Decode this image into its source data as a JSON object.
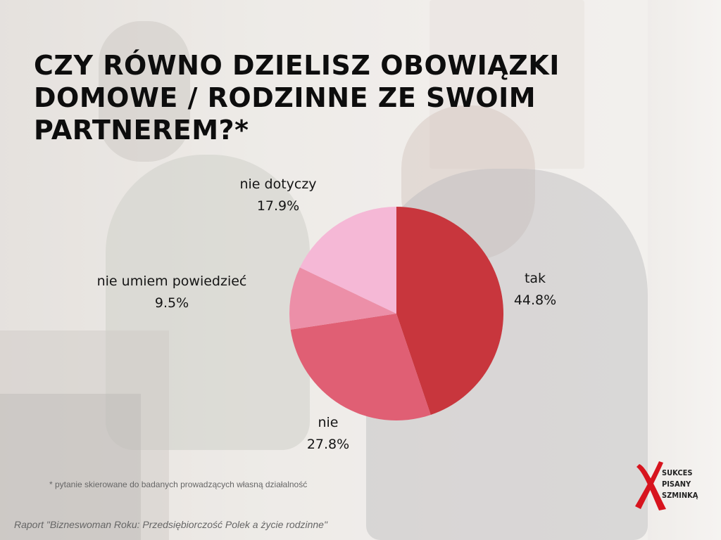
{
  "title_lines": [
    "CZY RÓWNO DZIELISZ OBOWIĄZKI",
    "DOMOWE / RODZINNE ZE SWOIM",
    "PARTNEREM?*"
  ],
  "footnote": "* pytanie skierowane do badanych  prowadzących własną działalność",
  "source": "Raport \"Bizneswoman Roku: Przedsiębiorczość Polek a życie rodzinne\"",
  "logo": {
    "lines": [
      "SUKCES",
      "PISANY",
      "SZMINKĄ"
    ],
    "mark_color": "#d7141e",
    "icon": "red-x-logo"
  },
  "chart_data": {
    "type": "pie",
    "start": "12 o'clock",
    "direction": "clockwise",
    "slices": [
      {
        "label": "tak",
        "value": 44.8,
        "value_label": "44.8%",
        "color": "#c8363d"
      },
      {
        "label": "nie",
        "value": 27.8,
        "value_label": "27.8%",
        "color": "#e05f74"
      },
      {
        "label": "nie umiem powiedzieć",
        "value": 9.5,
        "value_label": "9.5%",
        "color": "#ec8fa8"
      },
      {
        "label": "nie dotyczy",
        "value": 17.9,
        "value_label": "17.9%",
        "color": "#f5b8d6"
      }
    ]
  }
}
